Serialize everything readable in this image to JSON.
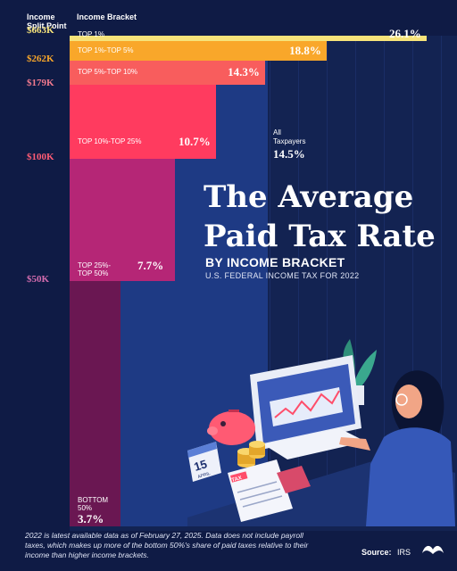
{
  "header": {
    "split_point": "Income\nSplit Point",
    "bracket": "Income Bracket"
  },
  "title_line1": "The Average",
  "title_line2": "Paid Tax Rate",
  "subtitle": "BY INCOME BRACKET",
  "subsubtitle": "U.S. FEDERAL INCOME TAX FOR 2022",
  "average": {
    "label": "All\nTaxpayers",
    "value_text": "14.5%"
  },
  "footnote": "2022 is latest available data as of February 27, 2025. Data does not include payroll taxes, which makes up more of the bottom 50%'s share of paid taxes relative to their income than higher income brackets.",
  "source": {
    "label": "Source:",
    "value": "IRS"
  },
  "illustration": {
    "calendar_day": "15",
    "calendar_month": "APRIL",
    "tax_form": "TAX"
  },
  "chart_data": {
    "type": "bar",
    "orientation": "horizontal",
    "categories": [
      "TOP 1%",
      "TOP 1%-TOP 5%",
      "TOP 5%-TOP 10%",
      "TOP 10%-TOP 25%",
      "TOP 25%-\nTOP 50%",
      "BOTTOM\n50%"
    ],
    "values": [
      26.1,
      18.8,
      14.3,
      10.7,
      7.7,
      3.7
    ],
    "value_labels": [
      "26.1%",
      "18.8%",
      "14.3%",
      "10.7%",
      "7.7%",
      "3.7%"
    ],
    "split_points": [
      "$663K",
      "$262K",
      "$179K",
      "$100K",
      "$50K",
      ""
    ],
    "population_shares": [
      1,
      4,
      5,
      15,
      25,
      50
    ],
    "average_value": 14.5,
    "colors": [
      "#f6e37a",
      "#f9a72a",
      "#f85d5d",
      "#ff3b5f",
      "#b52676",
      "#6a1752"
    ],
    "split_colors": [
      "#f6e37a",
      "#f9a72a",
      "#f37a8e",
      "#ff5c74",
      "#d36cae",
      ""
    ],
    "xlim": [
      0,
      26.1
    ]
  }
}
